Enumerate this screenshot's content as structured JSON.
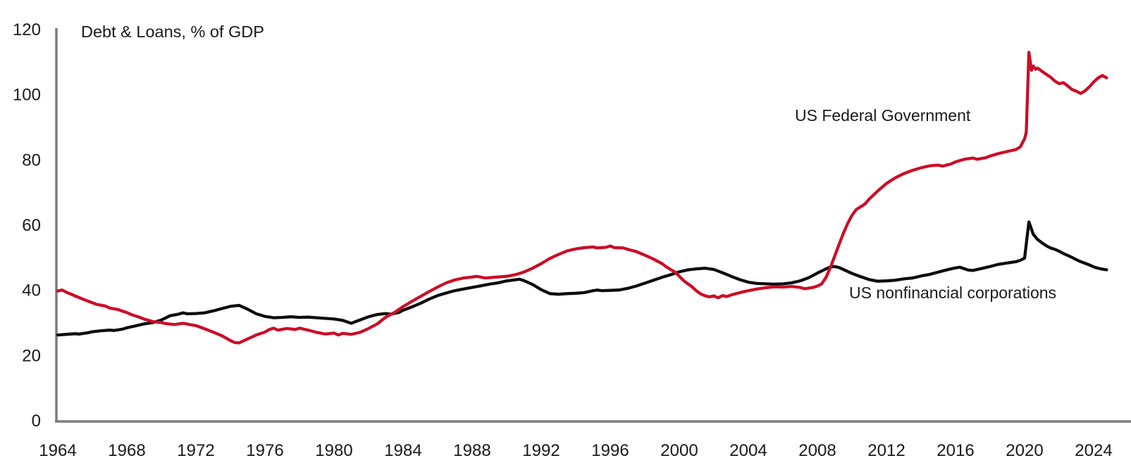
{
  "chart_data": {
    "type": "line",
    "title": "Debt & Loans, % of GDP",
    "xlabel": "",
    "ylabel": "Debt & Loans, % of GDP",
    "grid": false,
    "legend_position": "inline-annotations",
    "x_axis": {
      "min": 1964,
      "max": 2025.2,
      "ticks": [
        1964,
        1968,
        1972,
        1976,
        1980,
        1984,
        1988,
        1992,
        1996,
        2000,
        2004,
        2008,
        2012,
        2016,
        2020,
        2024
      ]
    },
    "y_axis": {
      "min": 0,
      "max": 120,
      "ticks": [
        0,
        20,
        40,
        60,
        80,
        100,
        120
      ]
    },
    "series": [
      {
        "name": "US Federal Government",
        "color": "#cb0e26",
        "points": [
          [
            1964,
            39.8
          ],
          [
            1964.25,
            40.1
          ],
          [
            1964.5,
            39.4
          ],
          [
            1965,
            38.3
          ],
          [
            1965.5,
            37.2
          ],
          [
            1966,
            36.2
          ],
          [
            1966.25,
            35.7
          ],
          [
            1966.75,
            35.2
          ],
          [
            1967,
            34.6
          ],
          [
            1967.5,
            34.1
          ],
          [
            1967.75,
            33.6
          ],
          [
            1968,
            33.2
          ],
          [
            1968.25,
            32.6
          ],
          [
            1968.75,
            31.7
          ],
          [
            1969,
            31.2
          ],
          [
            1969.5,
            30.4
          ],
          [
            1970,
            30.1
          ],
          [
            1970.25,
            29.8
          ],
          [
            1970.75,
            29.5
          ],
          [
            1971.25,
            29.9
          ],
          [
            1971.75,
            29.4
          ],
          [
            1972,
            29.2
          ],
          [
            1972.5,
            28.2
          ],
          [
            1973,
            27.2
          ],
          [
            1973.5,
            26.1
          ],
          [
            1974,
            24.6
          ],
          [
            1974.25,
            24.0
          ],
          [
            1974.5,
            23.9
          ],
          [
            1975,
            25.1
          ],
          [
            1975.5,
            26.3
          ],
          [
            1976,
            27.2
          ],
          [
            1976.25,
            28.0
          ],
          [
            1976.5,
            28.4
          ],
          [
            1976.75,
            27.8
          ],
          [
            1977.25,
            28.3
          ],
          [
            1977.75,
            28.0
          ],
          [
            1978,
            28.4
          ],
          [
            1978.5,
            27.8
          ],
          [
            1979,
            27.1
          ],
          [
            1979.5,
            26.6
          ],
          [
            1980,
            26.9
          ],
          [
            1980.25,
            26.3
          ],
          [
            1980.5,
            26.8
          ],
          [
            1981,
            26.5
          ],
          [
            1981.25,
            26.8
          ],
          [
            1981.5,
            27.1
          ],
          [
            1982,
            28.3
          ],
          [
            1982.5,
            29.7
          ],
          [
            1983,
            31.8
          ],
          [
            1983.5,
            33.2
          ],
          [
            1984,
            35.0
          ],
          [
            1984.5,
            36.6
          ],
          [
            1985,
            38.1
          ],
          [
            1985.5,
            39.6
          ],
          [
            1986,
            41.0
          ],
          [
            1986.5,
            42.3
          ],
          [
            1987,
            43.2
          ],
          [
            1987.5,
            43.8
          ],
          [
            1988,
            44.1
          ],
          [
            1988.25,
            44.3
          ],
          [
            1988.75,
            43.8
          ],
          [
            1989.25,
            44.0
          ],
          [
            1989.75,
            44.2
          ],
          [
            1990,
            44.3
          ],
          [
            1990.5,
            44.8
          ],
          [
            1991,
            45.6
          ],
          [
            1991.5,
            46.8
          ],
          [
            1992,
            48.2
          ],
          [
            1992.5,
            49.8
          ],
          [
            1993,
            51.0
          ],
          [
            1993.5,
            52.1
          ],
          [
            1994,
            52.7
          ],
          [
            1994.5,
            53.1
          ],
          [
            1995,
            53.3
          ],
          [
            1995.25,
            53.0
          ],
          [
            1995.75,
            53.2
          ],
          [
            1996,
            53.6
          ],
          [
            1996.25,
            53.1
          ],
          [
            1996.75,
            53.0
          ],
          [
            1997,
            52.6
          ],
          [
            1997.5,
            51.9
          ],
          [
            1998,
            50.8
          ],
          [
            1998.5,
            49.6
          ],
          [
            1999,
            48.2
          ],
          [
            1999.25,
            47.2
          ],
          [
            1999.75,
            45.6
          ],
          [
            2000,
            44.3
          ],
          [
            2000.25,
            43.0
          ],
          [
            2000.75,
            41.0
          ],
          [
            2001,
            39.8
          ],
          [
            2001.25,
            38.9
          ],
          [
            2001.5,
            38.3
          ],
          [
            2001.75,
            38.0
          ],
          [
            2002,
            38.3
          ],
          [
            2002.25,
            37.7
          ],
          [
            2002.5,
            38.4
          ],
          [
            2002.75,
            38.1
          ],
          [
            2003,
            38.6
          ],
          [
            2003.5,
            39.3
          ],
          [
            2004,
            39.9
          ],
          [
            2004.5,
            40.4
          ],
          [
            2005,
            40.8
          ],
          [
            2005.5,
            41.1
          ],
          [
            2006,
            41.0
          ],
          [
            2006.5,
            41.2
          ],
          [
            2007,
            40.9
          ],
          [
            2007.25,
            40.5
          ],
          [
            2007.75,
            40.9
          ],
          [
            2008,
            41.3
          ],
          [
            2008.25,
            42.0
          ],
          [
            2008.5,
            44.0
          ],
          [
            2008.75,
            47.0
          ],
          [
            2009,
            50.5
          ],
          [
            2009.25,
            54.0
          ],
          [
            2009.5,
            57.5
          ],
          [
            2009.75,
            60.5
          ],
          [
            2010,
            63.0
          ],
          [
            2010.25,
            64.8
          ],
          [
            2010.75,
            66.5
          ],
          [
            2011,
            68.0
          ],
          [
            2011.5,
            70.5
          ],
          [
            2012,
            72.8
          ],
          [
            2012.5,
            74.5
          ],
          [
            2013,
            75.8
          ],
          [
            2013.5,
            76.8
          ],
          [
            2014,
            77.6
          ],
          [
            2014.5,
            78.2
          ],
          [
            2015,
            78.4
          ],
          [
            2015.25,
            78.1
          ],
          [
            2015.75,
            78.8
          ],
          [
            2016,
            79.4
          ],
          [
            2016.5,
            80.2
          ],
          [
            2017,
            80.6
          ],
          [
            2017.25,
            80.2
          ],
          [
            2017.75,
            80.7
          ],
          [
            2018,
            81.2
          ],
          [
            2018.5,
            82.0
          ],
          [
            2019,
            82.6
          ],
          [
            2019.5,
            83.2
          ],
          [
            2019.75,
            84.0
          ],
          [
            2020,
            86.5
          ],
          [
            2020.1,
            88.5
          ],
          [
            2020.25,
            113.0
          ],
          [
            2020.4,
            107.5
          ],
          [
            2020.5,
            108.8
          ],
          [
            2020.65,
            107.8
          ],
          [
            2020.75,
            108.2
          ],
          [
            2021,
            107.2
          ],
          [
            2021.25,
            106.3
          ],
          [
            2021.5,
            105.4
          ],
          [
            2021.75,
            104.2
          ],
          [
            2022,
            103.4
          ],
          [
            2022.25,
            103.7
          ],
          [
            2022.5,
            102.7
          ],
          [
            2022.75,
            101.6
          ],
          [
            2023,
            101.1
          ],
          [
            2023.25,
            100.4
          ],
          [
            2023.5,
            101.2
          ],
          [
            2023.75,
            102.4
          ],
          [
            2024,
            103.9
          ],
          [
            2024.25,
            105.1
          ],
          [
            2024.5,
            105.9
          ],
          [
            2024.75,
            105.2
          ]
        ]
      },
      {
        "name": "US nonfinancial corporations",
        "color": "#0d0d0d",
        "points": [
          [
            1964,
            26.3
          ],
          [
            1964.5,
            26.5
          ],
          [
            1965,
            26.7
          ],
          [
            1965.25,
            26.6
          ],
          [
            1965.75,
            27.0
          ],
          [
            1966,
            27.3
          ],
          [
            1966.5,
            27.6
          ],
          [
            1967,
            27.8
          ],
          [
            1967.25,
            27.7
          ],
          [
            1967.75,
            28.1
          ],
          [
            1968,
            28.5
          ],
          [
            1968.5,
            29.1
          ],
          [
            1969,
            29.7
          ],
          [
            1969.5,
            30.1
          ],
          [
            1970,
            30.9
          ],
          [
            1970.5,
            32.2
          ],
          [
            1971,
            32.7
          ],
          [
            1971.25,
            33.1
          ],
          [
            1971.5,
            32.8
          ],
          [
            1972,
            32.9
          ],
          [
            1972.5,
            33.1
          ],
          [
            1973,
            33.7
          ],
          [
            1973.5,
            34.4
          ],
          [
            1974,
            35.1
          ],
          [
            1974.5,
            35.4
          ],
          [
            1975,
            34.2
          ],
          [
            1975.5,
            32.8
          ],
          [
            1976,
            32.0
          ],
          [
            1976.5,
            31.6
          ],
          [
            1977,
            31.7
          ],
          [
            1977.5,
            31.9
          ],
          [
            1978,
            31.7
          ],
          [
            1978.5,
            31.8
          ],
          [
            1979,
            31.6
          ],
          [
            1979.5,
            31.4
          ],
          [
            1980,
            31.2
          ],
          [
            1980.5,
            30.8
          ],
          [
            1981,
            29.9
          ],
          [
            1981.25,
            30.4
          ],
          [
            1981.75,
            31.4
          ],
          [
            1982,
            31.9
          ],
          [
            1982.5,
            32.6
          ],
          [
            1983,
            32.9
          ],
          [
            1983.25,
            32.7
          ],
          [
            1983.75,
            33.2
          ],
          [
            1984,
            33.9
          ],
          [
            1984.5,
            34.9
          ],
          [
            1985,
            36.0
          ],
          [
            1985.5,
            37.3
          ],
          [
            1986,
            38.4
          ],
          [
            1986.5,
            39.2
          ],
          [
            1987,
            39.9
          ],
          [
            1987.5,
            40.4
          ],
          [
            1988,
            40.9
          ],
          [
            1988.5,
            41.4
          ],
          [
            1989,
            41.9
          ],
          [
            1989.5,
            42.3
          ],
          [
            1990,
            42.9
          ],
          [
            1990.75,
            43.4
          ],
          [
            1991,
            43.0
          ],
          [
            1991.5,
            41.8
          ],
          [
            1992,
            40.2
          ],
          [
            1992.5,
            39.0
          ],
          [
            1993,
            38.8
          ],
          [
            1993.5,
            39.0
          ],
          [
            1994,
            39.1
          ],
          [
            1994.5,
            39.3
          ],
          [
            1995,
            39.9
          ],
          [
            1995.25,
            40.1
          ],
          [
            1995.5,
            39.9
          ],
          [
            1996,
            40.0
          ],
          [
            1996.5,
            40.1
          ],
          [
            1997,
            40.6
          ],
          [
            1997.5,
            41.3
          ],
          [
            1998,
            42.2
          ],
          [
            1998.5,
            43.1
          ],
          [
            1999,
            44.0
          ],
          [
            1999.5,
            44.8
          ],
          [
            2000,
            45.7
          ],
          [
            2000.5,
            46.3
          ],
          [
            2001,
            46.6
          ],
          [
            2001.5,
            46.8
          ],
          [
            2002,
            46.4
          ],
          [
            2002.5,
            45.4
          ],
          [
            2003,
            44.3
          ],
          [
            2003.5,
            43.3
          ],
          [
            2004,
            42.5
          ],
          [
            2004.5,
            42.1
          ],
          [
            2005,
            42.0
          ],
          [
            2005.5,
            41.9
          ],
          [
            2006,
            42.0
          ],
          [
            2006.5,
            42.3
          ],
          [
            2007,
            42.9
          ],
          [
            2007.5,
            43.9
          ],
          [
            2008,
            45.3
          ],
          [
            2008.5,
            46.6
          ],
          [
            2008.75,
            47.2
          ],
          [
            2009,
            47.3
          ],
          [
            2009.25,
            47.0
          ],
          [
            2009.5,
            46.4
          ],
          [
            2010,
            45.2
          ],
          [
            2010.5,
            44.2
          ],
          [
            2011,
            43.3
          ],
          [
            2011.5,
            42.8
          ],
          [
            2012,
            42.9
          ],
          [
            2012.5,
            43.1
          ],
          [
            2013,
            43.5
          ],
          [
            2013.5,
            43.8
          ],
          [
            2014,
            44.4
          ],
          [
            2014.5,
            44.9
          ],
          [
            2015,
            45.6
          ],
          [
            2015.5,
            46.3
          ],
          [
            2016,
            46.9
          ],
          [
            2016.25,
            47.1
          ],
          [
            2016.75,
            46.2
          ],
          [
            2017,
            46.1
          ],
          [
            2017.5,
            46.7
          ],
          [
            2018,
            47.3
          ],
          [
            2018.5,
            48.0
          ],
          [
            2019,
            48.4
          ],
          [
            2019.5,
            48.8
          ],
          [
            2019.75,
            49.2
          ],
          [
            2020,
            49.9
          ],
          [
            2020.25,
            61.0
          ],
          [
            2020.5,
            57.2
          ],
          [
            2020.75,
            55.6
          ],
          [
            2021,
            54.6
          ],
          [
            2021.25,
            53.7
          ],
          [
            2021.5,
            53.0
          ],
          [
            2021.75,
            52.6
          ],
          [
            2022,
            52.0
          ],
          [
            2022.25,
            51.3
          ],
          [
            2022.5,
            50.7
          ],
          [
            2022.75,
            50.1
          ],
          [
            2023,
            49.4
          ],
          [
            2023.25,
            48.8
          ],
          [
            2023.5,
            48.3
          ],
          [
            2023.75,
            47.8
          ],
          [
            2024,
            47.2
          ],
          [
            2024.25,
            46.8
          ],
          [
            2024.5,
            46.5
          ],
          [
            2024.75,
            46.3
          ]
        ]
      }
    ]
  },
  "colors": {
    "background": "#ffffff",
    "axis": "#7b7b7b",
    "text": "#1a1a1a",
    "federal_red": "#cb0e26",
    "corporations_black": "#0d0d0d"
  }
}
